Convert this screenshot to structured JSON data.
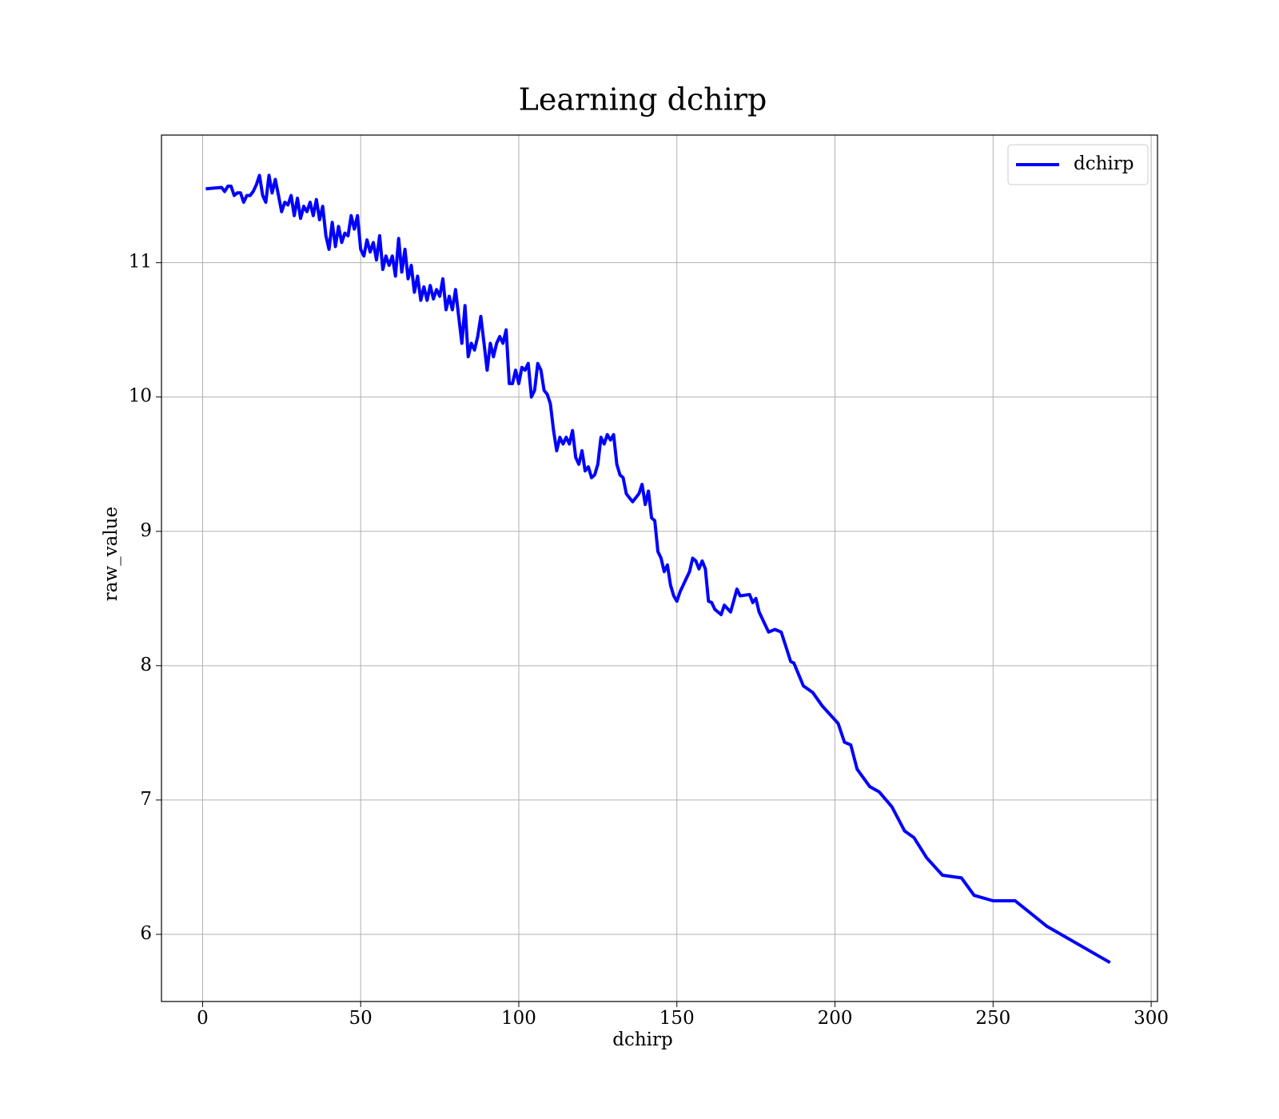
{
  "chart_data": {
    "type": "line",
    "title": "Learning dchirp",
    "xlabel": "dchirp",
    "ylabel": "raw_value",
    "x": [
      1,
      6,
      7,
      8,
      9,
      10,
      11,
      12,
      13,
      14,
      15,
      16,
      17,
      18,
      19,
      20,
      21,
      22,
      23,
      24,
      25,
      26,
      27,
      28,
      29,
      30,
      31,
      32,
      33,
      34,
      35,
      36,
      37,
      38,
      39,
      40,
      41,
      42,
      43,
      44,
      45,
      46,
      47,
      48,
      49,
      50,
      51,
      52,
      53,
      54,
      55,
      56,
      57,
      58,
      59,
      60,
      61,
      62,
      63,
      64,
      65,
      66,
      67,
      68,
      69,
      70,
      71,
      72,
      73,
      74,
      75,
      76,
      77,
      78,
      79,
      80,
      81,
      82,
      83,
      84,
      85,
      86,
      87,
      88,
      89,
      90,
      91,
      92,
      93,
      94,
      95,
      96,
      97,
      98,
      99,
      100,
      101,
      102,
      103,
      104,
      105,
      106,
      107,
      108,
      109,
      110,
      111,
      112,
      113,
      114,
      115,
      116,
      117,
      118,
      119,
      120,
      121,
      122,
      123,
      124,
      125,
      126,
      127,
      128,
      129,
      130,
      131,
      132,
      133,
      134,
      135,
      136,
      137,
      138,
      139,
      140,
      141,
      142,
      143,
      144,
      145,
      146,
      147,
      148,
      149,
      150,
      151,
      152,
      153,
      154,
      155,
      156,
      157,
      158,
      159,
      160,
      161,
      162,
      164,
      165,
      167,
      169,
      170,
      173,
      174,
      175,
      176,
      179,
      181,
      183,
      186,
      187,
      190,
      193,
      196,
      201,
      203,
      205,
      207,
      211,
      214,
      218,
      222,
      225,
      229,
      234,
      240,
      244,
      250,
      257,
      267,
      287
    ],
    "series": [
      {
        "name": "dchirp",
        "color": "#0000ff",
        "values": [
          11.55,
          11.56,
          11.53,
          11.57,
          11.57,
          11.5,
          11.52,
          11.52,
          11.45,
          11.5,
          11.5,
          11.53,
          11.58,
          11.65,
          11.5,
          11.45,
          11.65,
          11.52,
          11.62,
          11.5,
          11.38,
          11.45,
          11.43,
          11.5,
          11.35,
          11.48,
          11.33,
          11.42,
          11.38,
          11.45,
          11.35,
          11.47,
          11.32,
          11.42,
          11.2,
          11.1,
          11.3,
          11.12,
          11.27,
          11.15,
          11.22,
          11.2,
          11.35,
          11.25,
          11.35,
          11.1,
          11.05,
          11.17,
          11.08,
          11.15,
          11.02,
          11.2,
          10.95,
          11.05,
          10.98,
          11.05,
          10.9,
          11.18,
          10.93,
          11.1,
          10.88,
          10.98,
          10.78,
          10.9,
          10.72,
          10.82,
          10.72,
          10.83,
          10.73,
          10.8,
          10.75,
          10.88,
          10.65,
          10.75,
          10.65,
          10.8,
          10.6,
          10.4,
          10.68,
          10.3,
          10.4,
          10.35,
          10.45,
          10.6,
          10.4,
          10.2,
          10.4,
          10.3,
          10.4,
          10.45,
          10.4,
          10.5,
          10.1,
          10.1,
          10.2,
          10.1,
          10.22,
          10.2,
          10.25,
          10.0,
          10.05,
          10.25,
          10.2,
          10.05,
          10.02,
          9.95,
          9.75,
          9.6,
          9.7,
          9.65,
          9.7,
          9.65,
          9.75,
          9.55,
          9.5,
          9.6,
          9.45,
          9.48,
          9.4,
          9.42,
          9.5,
          9.7,
          9.65,
          9.72,
          9.68,
          9.72,
          9.5,
          9.42,
          9.4,
          9.28,
          9.25,
          9.22,
          9.25,
          9.28,
          9.35,
          9.2,
          9.3,
          9.1,
          9.08,
          8.85,
          8.8,
          8.7,
          8.75,
          8.6,
          8.52,
          8.48,
          8.55,
          8.6,
          8.65,
          8.7,
          8.8,
          8.78,
          8.72,
          8.78,
          8.72,
          8.48,
          8.47,
          8.42,
          8.38,
          8.45,
          8.4,
          8.57,
          8.52,
          8.53,
          8.47,
          8.5,
          8.4,
          8.25,
          8.27,
          8.25,
          8.03,
          8.02,
          7.85,
          7.8,
          7.7,
          7.57,
          7.43,
          7.41,
          7.23,
          7.1,
          7.06,
          6.95,
          6.77,
          6.72,
          6.57,
          6.44,
          6.42,
          6.29,
          6.25,
          6.25,
          6.06,
          5.79
        ]
      }
    ],
    "xlim": [
      -13,
      302
    ],
    "ylim": [
      5.5,
      11.95
    ],
    "xticks": [
      0,
      50,
      100,
      150,
      200,
      250,
      300
    ],
    "yticks": [
      6,
      7,
      8,
      9,
      10,
      11
    ],
    "grid": true,
    "legend": "upper right"
  }
}
